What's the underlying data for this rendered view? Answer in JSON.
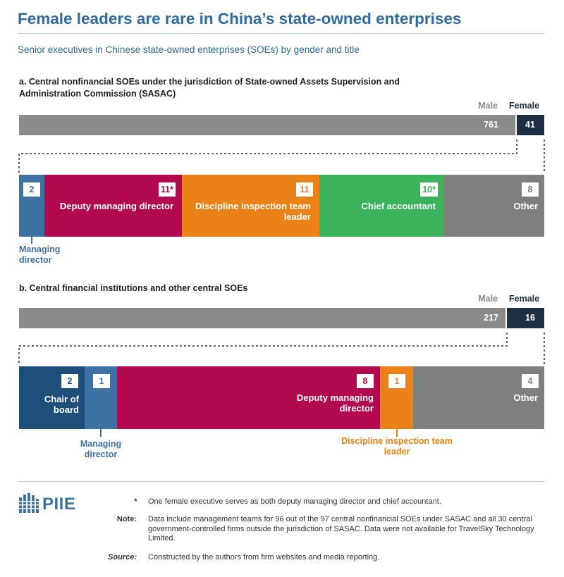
{
  "title": "Female leaders are rare in China’s state-owned enterprises",
  "subtitle": "Senior executives in Chinese state-owned enterprises (SOEs) by gender and title",
  "colors": {
    "title_blue": "#2f6a9a",
    "male_gray": "#8a8a8a",
    "female_navy": "#1e2f44",
    "managing_director": "#3e72a4",
    "chair_of_board": "#1d4f7a",
    "deputy_managing_director": "#b3094f",
    "discipline_inspection": "#ea8218",
    "chief_accountant": "#3bb35c",
    "other": "#7f7f7f"
  },
  "chart_data": [
    {
      "type": "bar",
      "panel": "a",
      "title": "a. Central nonfinancial SOEs under the jurisdiction of State-owned Assets Supervision and Administration Commission (SASAC)",
      "gender_labels": {
        "male": "Male",
        "female": "Female"
      },
      "gender": {
        "male": 761,
        "female": 41
      },
      "female_breakdown": [
        {
          "label": "Managing director",
          "value": 2,
          "display": "2"
        },
        {
          "label": "Deputy managing director",
          "value": 11,
          "display": "11*"
        },
        {
          "label": "Discipline inspection team leader",
          "value": 11,
          "display": "11"
        },
        {
          "label": "Chief accountant",
          "value": 10,
          "display": "10*"
        },
        {
          "label": "Other",
          "value": 8,
          "display": "8"
        }
      ]
    },
    {
      "type": "bar",
      "panel": "b",
      "title": "b. Central financial institutions and other central SOEs",
      "gender_labels": {
        "male": "Male",
        "female": "Female"
      },
      "gender": {
        "male": 217,
        "female": 16
      },
      "female_breakdown": [
        {
          "label": "Chair of board",
          "value": 2,
          "display": "2"
        },
        {
          "label": "Managing director",
          "value": 1,
          "display": "1"
        },
        {
          "label": "Deputy managing director",
          "value": 8,
          "display": "8"
        },
        {
          "label": "Discipline inspection team leader",
          "value": 1,
          "display": "1"
        },
        {
          "label": "Other",
          "value": 4,
          "display": "4"
        }
      ]
    }
  ],
  "footer": {
    "logo_text": "PIIE",
    "asterisk_label": "*",
    "asterisk_text": "One female executive serves as both deputy managing director and chief accountant.",
    "note_label": "Note:",
    "note_text": "Data include management teams for 96 out of the 97 central nonfinancial SOEs under SASAC and all 30 central government-controlled firms outside the jurisdiction of SASAC. Data were not available for TravelSky Technology Limited.",
    "source_label": "Source:",
    "source_text": "Constructed by the authors from firm websites and media reporting."
  }
}
